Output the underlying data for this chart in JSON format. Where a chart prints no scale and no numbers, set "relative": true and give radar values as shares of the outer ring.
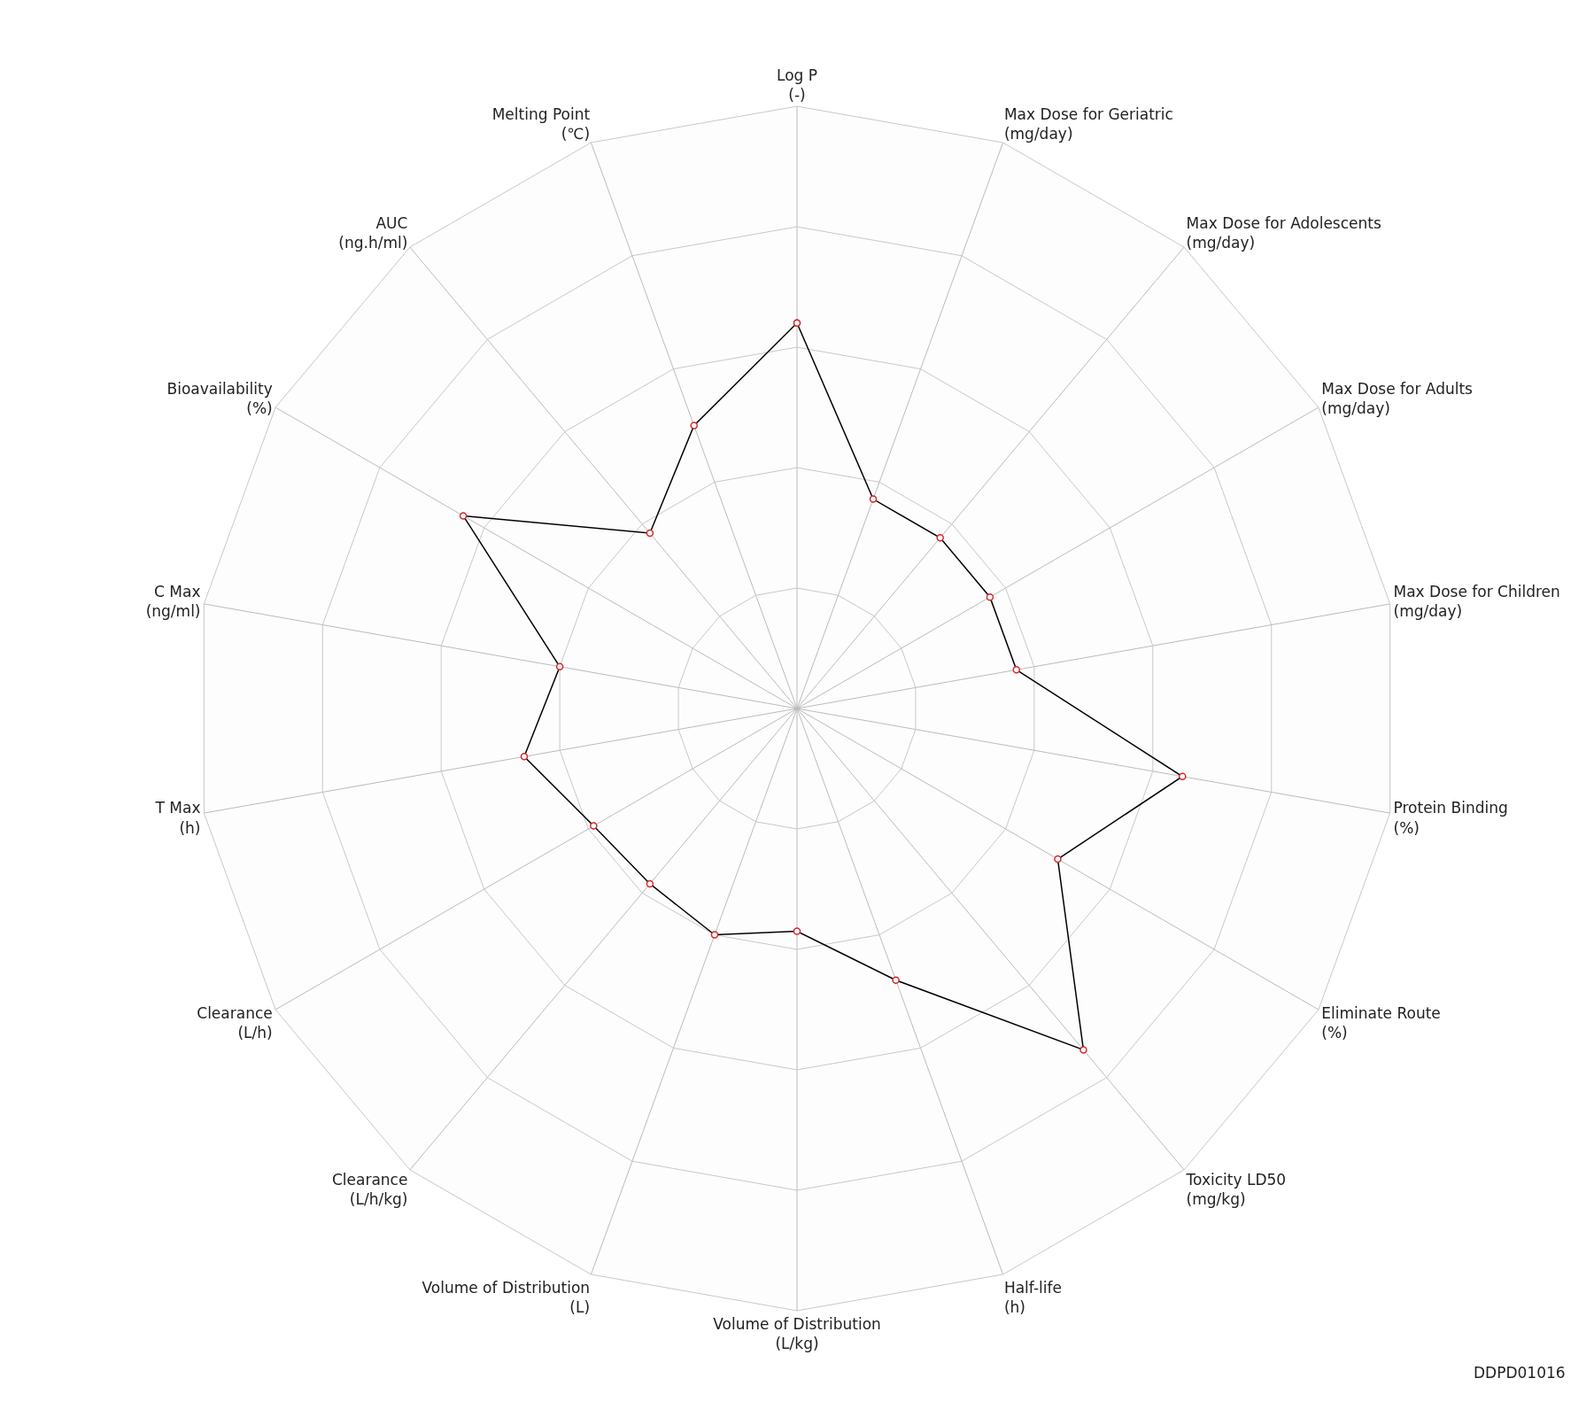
{
  "chart_data": {
    "type": "radar",
    "relative": true,
    "categories": [
      "Log P\n(-)",
      "Max Dose for Geriatric\n(mg/day)",
      "Max Dose for Adolescents\n(mg/day)",
      "Max Dose for Adults\n(mg/day)",
      "Max Dose for Children\n(mg/day)",
      "Protein Binding\n(%)",
      "Eliminate Route\n(%)",
      "Toxicity LD50\n(mg/kg)",
      "Half-life\n(h)",
      "Volume of Distribution\n(L/kg)",
      "Volume of Distribution\n(L)",
      "Clearance\n(L/h/kg)",
      "Clearance\n(L/h)",
      "T Max\n(h)",
      "C Max\n(ng/ml)",
      "Bioavailability\n(%)",
      "AUC\n(ng.h/ml)",
      "Melting Point\n(℃)"
    ],
    "series": [
      {
        "color": "#000000",
        "values": [
          0.64,
          0.37,
          0.37,
          0.37,
          0.37,
          0.65,
          0.5,
          0.74,
          0.48,
          0.37,
          0.4,
          0.38,
          0.39,
          0.46,
          0.4,
          0.64,
          0.38,
          0.5
        ]
      }
    ],
    "marker": "circle",
    "line_style": "solid",
    "grid": true,
    "annotations": [
      "DDPD01016"
    ]
  }
}
